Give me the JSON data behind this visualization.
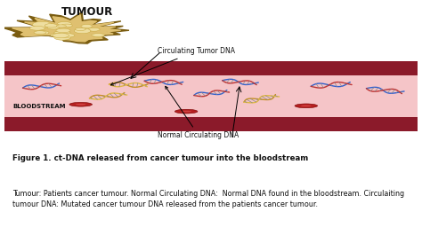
{
  "bg_color": "#ffffff",
  "bloodstream_color": "#f5c5c8",
  "stripe_color": "#8b1a2a",
  "tumour_label": "TUMOUR",
  "bloodstream_label": "BLOODSTREAM",
  "circulating_tumor_dna_label": "Circulating Tumor DNA",
  "normal_circulating_dna_label": "Normal Circulating DNA",
  "fig_title_bold": "Figure 1. ct-DNA released from cancer tumour into the bloodstream",
  "fig_body": "Tumour: Patients cancer tumour. Normal Circulating DNA:  Normal DNA found in the bloodstream. Circulaiting tumour DNA: Mutated cancer tumour DNA released from the patients cancer tumour.",
  "tumour_color_border": "#7a5c10",
  "tumour_color_main": "#dfc070",
  "tumour_color_cell": "#eedea0",
  "tumour_color_cell_border": "#c8a840",
  "rbc_color": "#b52020",
  "rbc_highlight": "#d04040",
  "dna_blue": "#3060d0",
  "dna_red": "#c03030",
  "dna_yellow1": "#c89020",
  "dna_yellow2": "#e0b840",
  "dna_bar": "#888888"
}
